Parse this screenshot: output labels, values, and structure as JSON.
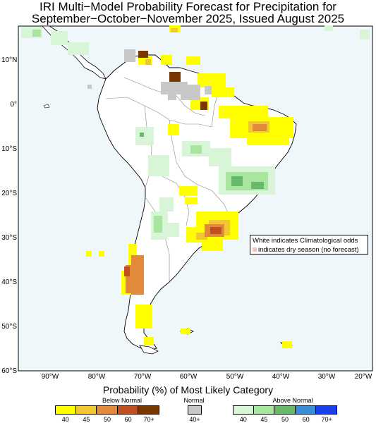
{
  "title": {
    "line1": "IRI Multi−Model Probability Forecast for Precipitation for",
    "line2": "September−October−November 2025, Issued August 2025"
  },
  "map": {
    "background_ocean": "#f0f7fb",
    "land_color": "#ffffff",
    "coast_color": "#000000",
    "border_color": "#888888",
    "lat_labels": [
      "10°N",
      "0°",
      "10°S",
      "20°S",
      "30°S",
      "40°S",
      "50°S",
      "60°S"
    ],
    "lon_labels": [
      "90°W",
      "80°W",
      "70°W",
      "60°W",
      "50°W",
      "40°W",
      "30°W",
      "20°W"
    ]
  },
  "note": {
    "line1": "White indicates Climatological odds",
    "line2": "indicates dry season (no forecast)"
  },
  "legend": {
    "title": "Probability (%) of Most Likely Category",
    "below_normal": {
      "label": "Below Normal",
      "colors": [
        "#ffff00",
        "#f2c830",
        "#e08a3a",
        "#c04f22",
        "#7a3800"
      ],
      "ticks": [
        "40",
        "45",
        "50",
        "60",
        "70+"
      ]
    },
    "normal": {
      "label": "Normal",
      "colors": [
        "#c8c8c8"
      ],
      "ticks": [
        "40+"
      ]
    },
    "above_normal": {
      "label": "Above Normal",
      "colors": [
        "#d8f5d8",
        "#a8e6a0",
        "#6ab86a",
        "#3a8ed8",
        "#1a40f0"
      ],
      "ticks": [
        "40",
        "45",
        "50",
        "60",
        "70+"
      ]
    }
  }
}
